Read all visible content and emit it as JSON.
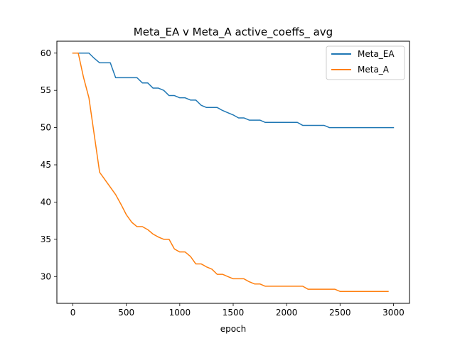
{
  "chart_data": {
    "type": "line",
    "title": "Meta_EA v Meta_A active_coeffs_ avg",
    "xlabel": "epoch",
    "ylabel": "",
    "xlim": [
      -150,
      3150
    ],
    "ylim": [
      26.4,
      61.6
    ],
    "xticks": [
      0,
      500,
      1000,
      1500,
      2000,
      2500,
      3000
    ],
    "yticks": [
      30,
      35,
      40,
      45,
      50,
      55,
      60
    ],
    "grid": false,
    "legend": "top-right",
    "series": [
      {
        "name": "Meta_EA",
        "color": "#1f77b4",
        "x": [
          0,
          50,
          100,
          150,
          200,
          250,
          300,
          350,
          400,
          450,
          500,
          550,
          600,
          650,
          700,
          750,
          800,
          850,
          900,
          950,
          1000,
          1050,
          1100,
          1150,
          1200,
          1250,
          1300,
          1350,
          1400,
          1450,
          1500,
          1550,
          1600,
          1650,
          1700,
          1750,
          1800,
          1850,
          1900,
          1950,
          2000,
          2050,
          2100,
          2150,
          2200,
          2250,
          2300,
          2350,
          2400,
          2450,
          2500,
          2550,
          2600,
          2650,
          2700,
          2750,
          2800,
          2850,
          2900,
          2950,
          3000
        ],
        "y": [
          60.0,
          60.0,
          60.0,
          60.0,
          59.3,
          58.7,
          58.7,
          58.7,
          56.7,
          56.7,
          56.7,
          56.7,
          56.7,
          56.0,
          56.0,
          55.3,
          55.3,
          55.0,
          54.3,
          54.3,
          54.0,
          54.0,
          53.7,
          53.7,
          53.0,
          52.7,
          52.7,
          52.7,
          52.3,
          52.0,
          51.7,
          51.3,
          51.3,
          51.0,
          51.0,
          51.0,
          50.7,
          50.7,
          50.7,
          50.7,
          50.7,
          50.7,
          50.7,
          50.3,
          50.3,
          50.3,
          50.3,
          50.3,
          50.0,
          50.0,
          50.0,
          50.0,
          50.0,
          50.0,
          50.0,
          50.0,
          50.0,
          50.0,
          50.0,
          50.0,
          50.0
        ]
      },
      {
        "name": "Meta_A",
        "color": "#ff7f0e",
        "x": [
          0,
          50,
          100,
          150,
          200,
          250,
          300,
          350,
          400,
          450,
          500,
          550,
          600,
          650,
          700,
          750,
          800,
          850,
          900,
          950,
          1000,
          1050,
          1100,
          1150,
          1200,
          1250,
          1300,
          1350,
          1400,
          1450,
          1500,
          1550,
          1600,
          1650,
          1700,
          1750,
          1800,
          1850,
          1900,
          1950,
          2000,
          2050,
          2100,
          2150,
          2200,
          2250,
          2300,
          2350,
          2400,
          2450,
          2500,
          2550,
          2600,
          2650,
          2700,
          2750,
          2800,
          2850,
          2900,
          2950
        ],
        "y": [
          60.0,
          60.0,
          56.7,
          54.0,
          49.0,
          44.0,
          43.0,
          42.0,
          41.0,
          39.7,
          38.3,
          37.3,
          36.7,
          36.7,
          36.3,
          35.7,
          35.3,
          35.0,
          35.0,
          33.7,
          33.3,
          33.3,
          32.7,
          31.7,
          31.7,
          31.3,
          31.0,
          30.3,
          30.3,
          30.0,
          29.7,
          29.7,
          29.7,
          29.3,
          29.0,
          29.0,
          28.7,
          28.7,
          28.7,
          28.7,
          28.7,
          28.7,
          28.7,
          28.7,
          28.3,
          28.3,
          28.3,
          28.3,
          28.3,
          28.3,
          28.0,
          28.0,
          28.0,
          28.0,
          28.0,
          28.0,
          28.0,
          28.0,
          28.0,
          28.0
        ]
      }
    ]
  }
}
